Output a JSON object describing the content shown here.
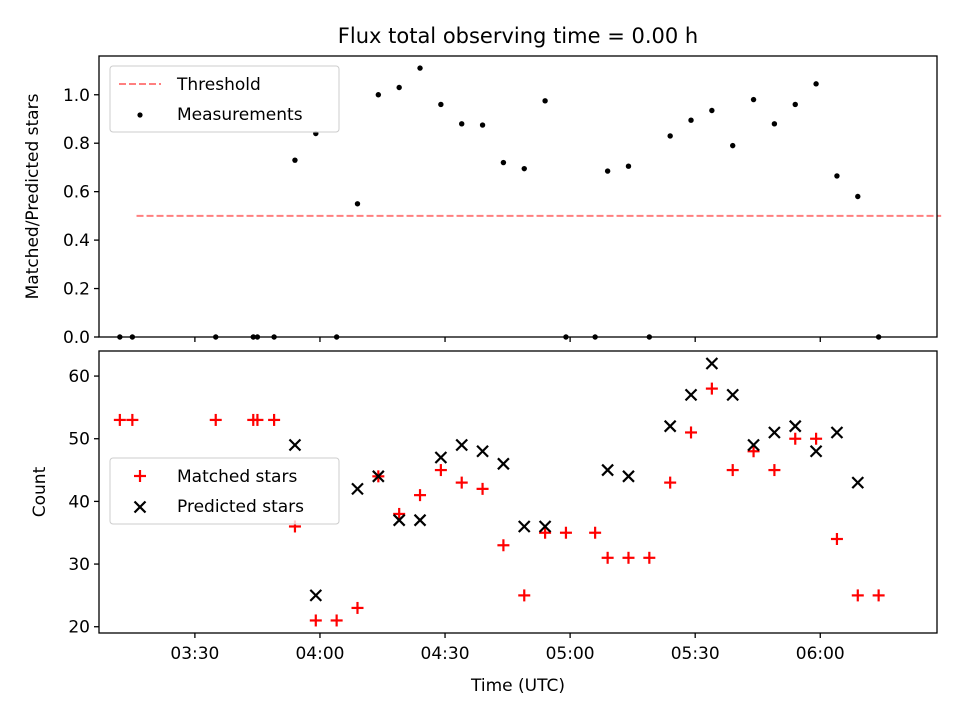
{
  "chart_data": [
    {
      "type": "scatter",
      "title": "Flux total observing time = 0.00 h",
      "xlabel": "",
      "ylabel": "Matched/Predicted stars",
      "xlim": [
        "03:07",
        "06:28"
      ],
      "ylim": [
        0.0,
        1.16
      ],
      "yticks": [
        0.0,
        0.2,
        0.4,
        0.6,
        0.8,
        1.0
      ],
      "ytick_labels": [
        "0.0",
        "0.2",
        "0.4",
        "0.6",
        "0.8",
        "1.0"
      ],
      "xticks": [
        "03:30",
        "04:00",
        "04:30",
        "05:00",
        "05:30",
        "06:00"
      ],
      "grid": false,
      "legend_position": "upper-left",
      "threshold": {
        "name": "Threshold",
        "y": 0.5,
        "x": [
          "03:16",
          "06:29"
        ],
        "color": "#ff7f7f",
        "style": "dashed"
      },
      "series": [
        {
          "name": "Measurements",
          "marker": "dot",
          "color": "#000000",
          "points": [
            {
              "x": "03:12",
              "y": 0.0
            },
            {
              "x": "03:15",
              "y": 0.0
            },
            {
              "x": "03:35",
              "y": 0.0
            },
            {
              "x": "03:44",
              "y": 0.0
            },
            {
              "x": "03:45",
              "y": 0.0
            },
            {
              "x": "03:49",
              "y": 0.0
            },
            {
              "x": "03:54",
              "y": 0.73
            },
            {
              "x": "03:59",
              "y": 0.84
            },
            {
              "x": "04:04",
              "y": 0.0
            },
            {
              "x": "04:09",
              "y": 0.55
            },
            {
              "x": "04:14",
              "y": 1.0
            },
            {
              "x": "04:19",
              "y": 1.03
            },
            {
              "x": "04:24",
              "y": 1.11
            },
            {
              "x": "04:29",
              "y": 0.96
            },
            {
              "x": "04:34",
              "y": 0.88
            },
            {
              "x": "04:39",
              "y": 0.875
            },
            {
              "x": "04:44",
              "y": 0.72
            },
            {
              "x": "04:49",
              "y": 0.695
            },
            {
              "x": "04:54",
              "y": 0.975
            },
            {
              "x": "04:59",
              "y": 0.0
            },
            {
              "x": "05:06",
              "y": 0.0
            },
            {
              "x": "05:09",
              "y": 0.685
            },
            {
              "x": "05:14",
              "y": 0.705
            },
            {
              "x": "05:19",
              "y": 0.0
            },
            {
              "x": "05:24",
              "y": 0.83
            },
            {
              "x": "05:29",
              "y": 0.895
            },
            {
              "x": "05:34",
              "y": 0.935
            },
            {
              "x": "05:39",
              "y": 0.79
            },
            {
              "x": "05:44",
              "y": 0.98
            },
            {
              "x": "05:49",
              "y": 0.88
            },
            {
              "x": "05:54",
              "y": 0.96
            },
            {
              "x": "05:59",
              "y": 1.045
            },
            {
              "x": "06:04",
              "y": 0.665
            },
            {
              "x": "06:09",
              "y": 0.58
            },
            {
              "x": "06:14",
              "y": 0.0
            }
          ]
        }
      ]
    },
    {
      "type": "scatter",
      "title": "",
      "xlabel": "Time (UTC)",
      "ylabel": "Count",
      "xlim": [
        "03:07",
        "06:28"
      ],
      "ylim": [
        19,
        64
      ],
      "yticks": [
        20,
        30,
        40,
        50,
        60
      ],
      "ytick_labels": [
        "20",
        "30",
        "40",
        "50",
        "60"
      ],
      "xticks": [
        "03:30",
        "04:00",
        "04:30",
        "05:00",
        "05:30",
        "06:00"
      ],
      "xtick_labels": [
        "03:30",
        "04:00",
        "04:30",
        "05:00",
        "05:30",
        "06:00"
      ],
      "grid": false,
      "legend_position": "center-left",
      "series": [
        {
          "name": "Matched stars",
          "marker": "plus",
          "color": "#ff0000",
          "points": [
            {
              "x": "03:12",
              "y": 53
            },
            {
              "x": "03:15",
              "y": 53
            },
            {
              "x": "03:35",
              "y": 53
            },
            {
              "x": "03:44",
              "y": 53
            },
            {
              "x": "03:45",
              "y": 53
            },
            {
              "x": "03:49",
              "y": 53
            },
            {
              "x": "03:54",
              "y": 36
            },
            {
              "x": "03:59",
              "y": 21
            },
            {
              "x": "04:04",
              "y": 21
            },
            {
              "x": "04:09",
              "y": 23
            },
            {
              "x": "04:14",
              "y": 44
            },
            {
              "x": "04:19",
              "y": 38
            },
            {
              "x": "04:24",
              "y": 41
            },
            {
              "x": "04:29",
              "y": 45
            },
            {
              "x": "04:34",
              "y": 43
            },
            {
              "x": "04:39",
              "y": 42
            },
            {
              "x": "04:44",
              "y": 33
            },
            {
              "x": "04:49",
              "y": 25
            },
            {
              "x": "04:54",
              "y": 35
            },
            {
              "x": "04:59",
              "y": 35
            },
            {
              "x": "05:06",
              "y": 35
            },
            {
              "x": "05:09",
              "y": 31
            },
            {
              "x": "05:14",
              "y": 31
            },
            {
              "x": "05:19",
              "y": 31
            },
            {
              "x": "05:24",
              "y": 43
            },
            {
              "x": "05:29",
              "y": 51
            },
            {
              "x": "05:34",
              "y": 58
            },
            {
              "x": "05:39",
              "y": 45
            },
            {
              "x": "05:44",
              "y": 48
            },
            {
              "x": "05:49",
              "y": 45
            },
            {
              "x": "05:54",
              "y": 50
            },
            {
              "x": "05:59",
              "y": 50
            },
            {
              "x": "06:04",
              "y": 34
            },
            {
              "x": "06:09",
              "y": 25
            },
            {
              "x": "06:14",
              "y": 25
            }
          ]
        },
        {
          "name": "Predicted stars",
          "marker": "x",
          "color": "#000000",
          "points": [
            {
              "x": "03:54",
              "y": 49
            },
            {
              "x": "03:59",
              "y": 25
            },
            {
              "x": "04:09",
              "y": 42
            },
            {
              "x": "04:14",
              "y": 44
            },
            {
              "x": "04:19",
              "y": 37
            },
            {
              "x": "04:24",
              "y": 37
            },
            {
              "x": "04:29",
              "y": 47
            },
            {
              "x": "04:34",
              "y": 49
            },
            {
              "x": "04:39",
              "y": 48
            },
            {
              "x": "04:44",
              "y": 46
            },
            {
              "x": "04:49",
              "y": 36
            },
            {
              "x": "04:54",
              "y": 36
            },
            {
              "x": "05:09",
              "y": 45
            },
            {
              "x": "05:14",
              "y": 44
            },
            {
              "x": "05:24",
              "y": 52
            },
            {
              "x": "05:29",
              "y": 57
            },
            {
              "x": "05:34",
              "y": 62
            },
            {
              "x": "05:39",
              "y": 57
            },
            {
              "x": "05:44",
              "y": 49
            },
            {
              "x": "05:49",
              "y": 51
            },
            {
              "x": "05:54",
              "y": 52
            },
            {
              "x": "05:59",
              "y": 48
            },
            {
              "x": "06:04",
              "y": 51
            },
            {
              "x": "06:09",
              "y": 43
            }
          ]
        }
      ]
    }
  ]
}
